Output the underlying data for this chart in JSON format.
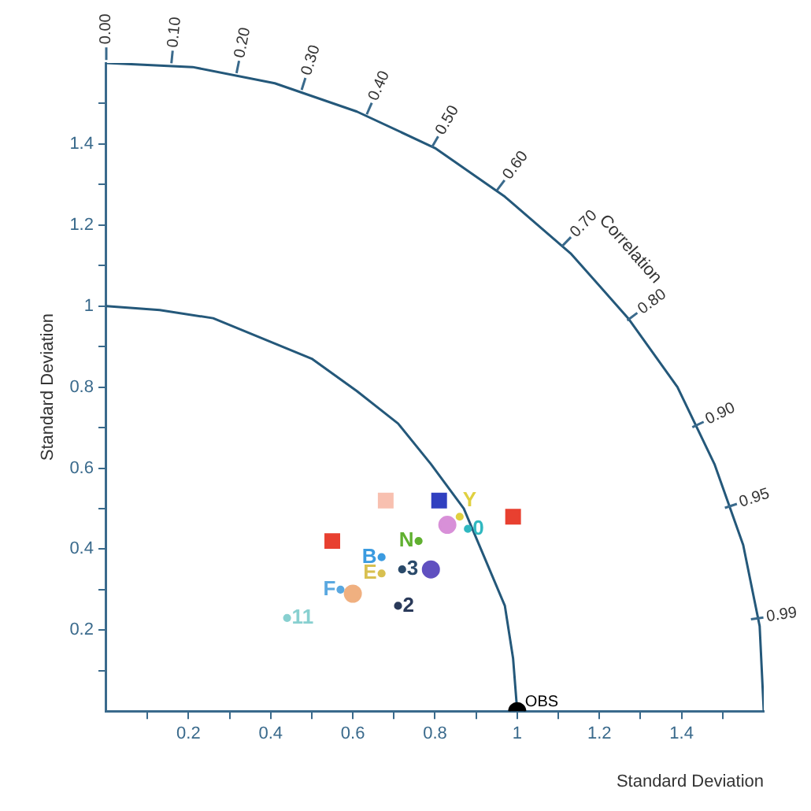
{
  "chart_data": {
    "type": "scatter",
    "xlabel": "Standard Deviation",
    "ylabel": "Standard Deviation",
    "xlim": [
      0,
      1.6
    ],
    "ylim": [
      0,
      1.6
    ],
    "xticks": [
      {
        "value": 0.1,
        "label": null
      },
      0.2,
      {
        "value": 0.3,
        "label": null
      },
      0.4,
      {
        "value": 0.5,
        "label": null
      },
      0.6,
      {
        "value": 0.7,
        "label": null
      },
      0.8,
      {
        "value": 0.9,
        "label": null
      },
      1.0,
      {
        "value": 1.1,
        "label": null
      },
      1.2,
      {
        "value": 1.3,
        "label": null
      },
      1.4,
      {
        "value": 1.5,
        "label": null
      }
    ],
    "yticks": [
      {
        "value": 0.1,
        "label": null
      },
      0.2,
      {
        "value": 0.3,
        "label": null
      },
      0.4,
      {
        "value": 0.5,
        "label": null
      },
      0.6,
      {
        "value": 0.7,
        "label": null
      },
      0.8,
      {
        "value": 0.9,
        "label": null
      },
      1.0,
      {
        "value": 1.1,
        "label": null
      },
      1.2,
      {
        "value": 1.3,
        "label": null
      },
      1.4,
      {
        "value": 1.5,
        "label": null
      }
    ],
    "grid": false,
    "legend": false,
    "series": [
      {
        "name": "OBS",
        "color": "#000000",
        "marker": "circle",
        "x": [
          1.0
        ],
        "values": [
          0
        ]
      },
      {
        "color": "#e84030",
        "marker": "square",
        "x": [
          0.99,
          0.55
        ],
        "values": [
          0.48,
          0.42
        ]
      },
      {
        "color": "#f8c0b0",
        "marker": "square",
        "x": [
          0.68
        ],
        "values": [
          0.52
        ]
      },
      {
        "color": "#3040c0",
        "marker": "square",
        "x": [
          0.81
        ],
        "values": [
          0.52
        ]
      },
      {
        "color": "#d890d8",
        "marker": "circle",
        "x": [
          0.83
        ],
        "values": [
          0.46
        ]
      },
      {
        "color": "#6050c0",
        "marker": "circle",
        "x": [
          0.79
        ],
        "values": [
          0.35
        ]
      },
      {
        "color": "#f0b080",
        "marker": "circle",
        "x": [
          0.6
        ],
        "values": [
          0.29
        ]
      },
      {
        "name": "Y",
        "color": "#e0d040",
        "x": [
          0.86
        ],
        "values": [
          0.48
        ]
      },
      {
        "name": "0",
        "color": "#30b8c0",
        "x": [
          0.88
        ],
        "values": [
          0.45
        ]
      },
      {
        "name": "N",
        "color": "#60b030",
        "x": [
          0.76
        ],
        "values": [
          0.42
        ]
      },
      {
        "name": "B",
        "color": "#3b9be0",
        "x": [
          0.67
        ],
        "values": [
          0.38
        ]
      },
      {
        "name": "E",
        "color": "#d8c050",
        "x": [
          0.67
        ],
        "values": [
          0.34
        ]
      },
      {
        "name": "3",
        "color": "#2a4a6a",
        "x": [
          0.72
        ],
        "values": [
          0.35
        ]
      },
      {
        "name": "F",
        "color": "#5aa8e0",
        "x": [
          0.57
        ],
        "values": [
          0.3
        ]
      },
      {
        "name": "2",
        "color": "#2a3a5a",
        "x": [
          0.71
        ],
        "values": [
          0.26
        ]
      },
      {
        "name": "11",
        "color": "#88d0d0",
        "x": [
          0.44
        ],
        "values": [
          0.23
        ]
      },
      {
        "type": "line",
        "color": "#24587a",
        "marker": "none",
        "x": [
          0,
          0.13,
          0.26,
          0.38,
          0.5,
          0.61,
          0.71,
          0.79,
          0.87,
          0.92,
          0.97,
          0.99,
          1
        ],
        "values": [
          1,
          0.99,
          0.97,
          0.92,
          0.87,
          0.79,
          0.71,
          0.61,
          0.5,
          0.38,
          0.26,
          0.13,
          0
        ]
      },
      {
        "type": "line",
        "color": "#24587a",
        "marker": "none",
        "x": [
          0,
          0.21,
          0.41,
          0.61,
          0.8,
          0.97,
          1.13,
          1.27,
          1.39,
          1.48,
          1.55,
          1.59,
          1.6
        ],
        "values": [
          1.6,
          1.59,
          1.55,
          1.48,
          1.39,
          1.27,
          1.13,
          0.97,
          0.8,
          0.61,
          0.41,
          0.21,
          0
        ]
      }
    ],
    "annotations": [
      "Correlation",
      "0.00",
      "0.10",
      "0.20",
      "0.30",
      "0.40",
      "0.50",
      "0.60",
      "0.70",
      "0.80",
      "0.90",
      "0.95",
      "0.99"
    ]
  }
}
